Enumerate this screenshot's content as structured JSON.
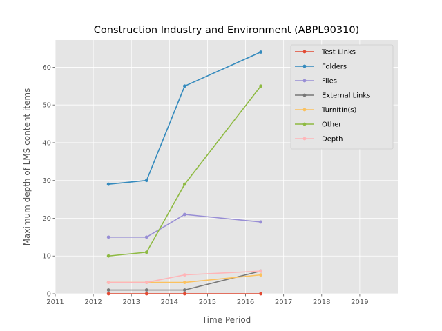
{
  "chart_data": {
    "type": "line",
    "title": "Construction Industry and Environment (ABPL90310)",
    "xlabel": "Time Period",
    "ylabel": "Maximum depth of LMS content items",
    "x": [
      2012.4,
      2013.4,
      2014.4,
      2016.4
    ],
    "xlim": [
      2011,
      2020
    ],
    "ylim": [
      0,
      67.2
    ],
    "x_ticks": [
      2011,
      2012,
      2013,
      2014,
      2015,
      2016,
      2017,
      2018,
      2019
    ],
    "y_ticks": [
      0,
      10,
      20,
      30,
      40,
      50,
      60
    ],
    "grid": true,
    "legend_position": "top-right",
    "series": [
      {
        "name": "Test-Links",
        "color": "#E24A33",
        "values": [
          0,
          0,
          0,
          0
        ]
      },
      {
        "name": "Folders",
        "color": "#348ABD",
        "values": [
          29,
          30,
          55,
          64
        ]
      },
      {
        "name": "Files",
        "color": "#988ED5",
        "values": [
          15,
          15,
          21,
          19
        ]
      },
      {
        "name": "External Links",
        "color": "#777777",
        "values": [
          1,
          1,
          1,
          6
        ]
      },
      {
        "name": "TurnItIn(s)",
        "color": "#FBC15E",
        "values": [
          3,
          3,
          3,
          5
        ]
      },
      {
        "name": "Other",
        "color": "#8EBA42",
        "values": [
          10,
          11,
          29,
          55
        ]
      },
      {
        "name": "Depth",
        "color": "#FFB5B8",
        "values": [
          3,
          3,
          5,
          6
        ]
      }
    ]
  }
}
